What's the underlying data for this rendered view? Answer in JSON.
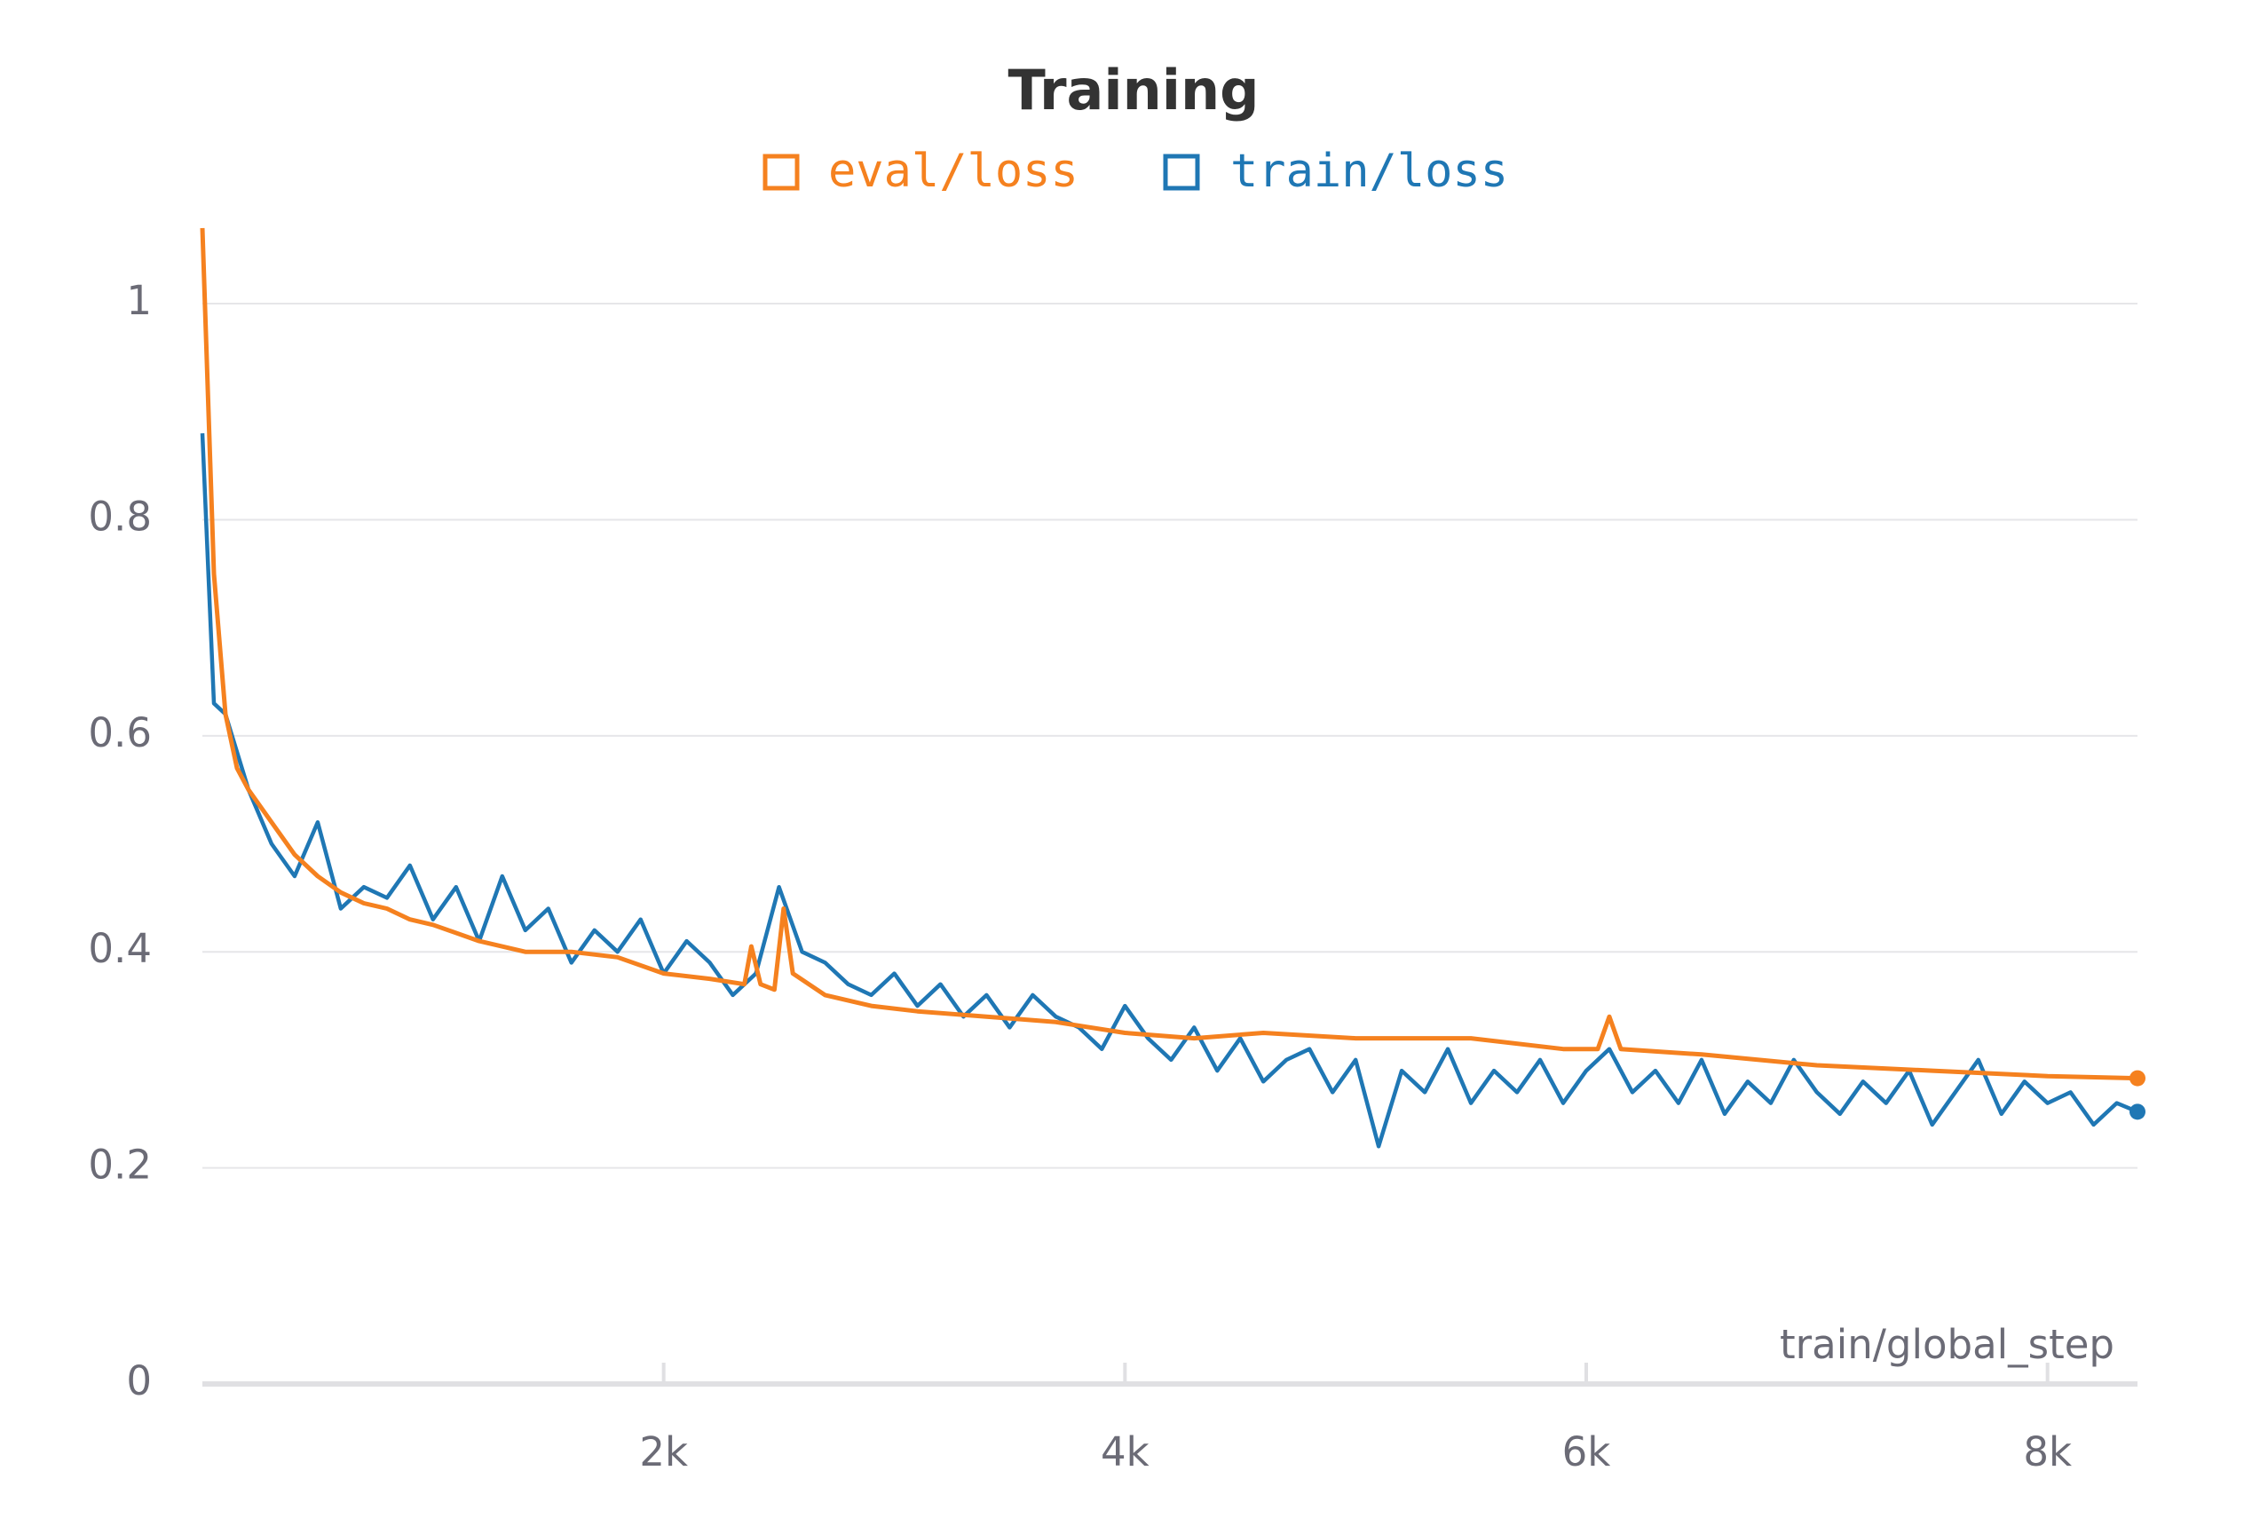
{
  "chart_data": {
    "type": "line",
    "title": "Training",
    "x_label": "train/global_step",
    "xlim": [
      0,
      8390
    ],
    "ylim": [
      0,
      1.074
    ],
    "xticks": [
      {
        "value": 2000,
        "label": "2k"
      },
      {
        "value": 4000,
        "label": "4k"
      },
      {
        "value": 6000,
        "label": "6k"
      },
      {
        "value": 8000,
        "label": "8k"
      }
    ],
    "yticks": [
      0,
      0.2,
      0.4,
      0.6,
      0.8,
      1
    ],
    "grid": true,
    "series": [
      {
        "name": "eval/loss",
        "color": "#f5811f",
        "x": [
          0,
          50,
          100,
          150,
          200,
          300,
          400,
          500,
          600,
          700,
          800,
          900,
          1000,
          1200,
          1400,
          1600,
          1800,
          2000,
          2200,
          2350,
          2380,
          2420,
          2480,
          2520,
          2560,
          2700,
          2900,
          3100,
          3400,
          3700,
          4000,
          4300,
          4600,
          5000,
          5500,
          5900,
          6050,
          6100,
          6150,
          6500,
          7000,
          7500,
          8000,
          8390
        ],
        "values": [
          1.07,
          0.75,
          0.62,
          0.57,
          0.55,
          0.52,
          0.49,
          0.47,
          0.455,
          0.445,
          0.44,
          0.43,
          0.425,
          0.41,
          0.4,
          0.4,
          0.395,
          0.38,
          0.375,
          0.37,
          0.405,
          0.37,
          0.365,
          0.44,
          0.38,
          0.36,
          0.35,
          0.345,
          0.34,
          0.335,
          0.325,
          0.32,
          0.325,
          0.32,
          0.32,
          0.31,
          0.31,
          0.34,
          0.31,
          0.305,
          0.295,
          0.29,
          0.285,
          0.283
        ]
      },
      {
        "name": "train/loss",
        "color": "#1f77b4",
        "x": [
          0,
          50,
          100,
          200,
          300,
          400,
          500,
          600,
          700,
          800,
          900,
          1000,
          1100,
          1200,
          1300,
          1400,
          1500,
          1600,
          1700,
          1800,
          1900,
          2000,
          2100,
          2200,
          2300,
          2400,
          2500,
          2600,
          2700,
          2800,
          2900,
          3000,
          3100,
          3200,
          3300,
          3400,
          3500,
          3600,
          3700,
          3800,
          3900,
          4000,
          4100,
          4200,
          4300,
          4400,
          4500,
          4600,
          4700,
          4800,
          4900,
          5000,
          5100,
          5200,
          5300,
          5400,
          5500,
          5600,
          5700,
          5800,
          5900,
          6000,
          6100,
          6200,
          6300,
          6400,
          6500,
          6600,
          6700,
          6800,
          6900,
          7000,
          7100,
          7200,
          7300,
          7400,
          7500,
          7600,
          7700,
          7800,
          7900,
          8000,
          8100,
          8200,
          8300,
          8390
        ],
        "values": [
          0.88,
          0.63,
          0.62,
          0.55,
          0.5,
          0.47,
          0.52,
          0.44,
          0.46,
          0.45,
          0.48,
          0.43,
          0.46,
          0.41,
          0.47,
          0.42,
          0.44,
          0.39,
          0.42,
          0.4,
          0.43,
          0.38,
          0.41,
          0.39,
          0.36,
          0.38,
          0.46,
          0.4,
          0.39,
          0.37,
          0.36,
          0.38,
          0.35,
          0.37,
          0.34,
          0.36,
          0.33,
          0.36,
          0.34,
          0.33,
          0.31,
          0.35,
          0.32,
          0.3,
          0.33,
          0.29,
          0.32,
          0.28,
          0.3,
          0.31,
          0.27,
          0.3,
          0.22,
          0.29,
          0.27,
          0.31,
          0.26,
          0.29,
          0.27,
          0.3,
          0.26,
          0.29,
          0.31,
          0.27,
          0.29,
          0.26,
          0.3,
          0.25,
          0.28,
          0.26,
          0.3,
          0.27,
          0.25,
          0.28,
          0.26,
          0.29,
          0.24,
          0.27,
          0.3,
          0.25,
          0.28,
          0.26,
          0.27,
          0.24,
          0.26,
          0.252
        ]
      }
    ]
  }
}
